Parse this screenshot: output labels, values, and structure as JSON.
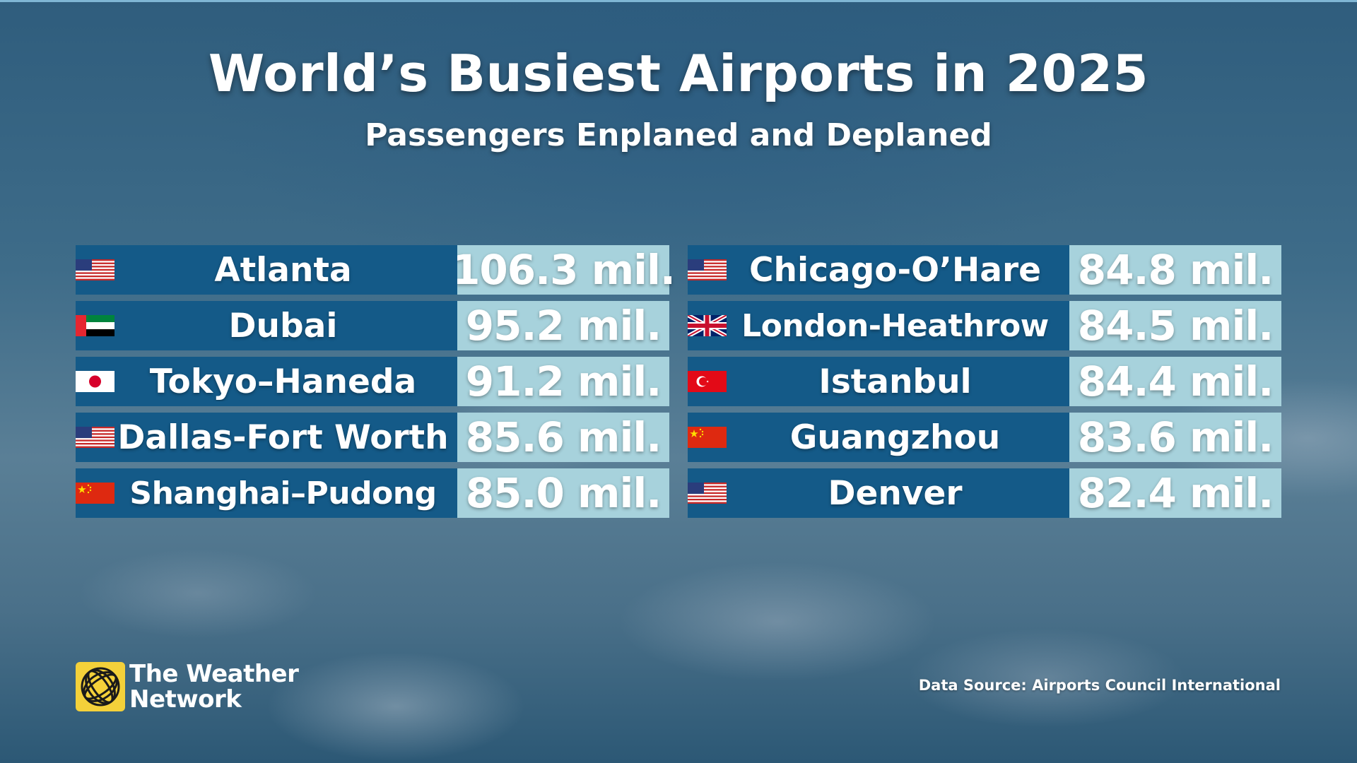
{
  "title": "World’s Busiest Airports in 2025",
  "subtitle": "Passengers Enplaned and Deplaned",
  "airports_left": [
    {
      "flag": "us-flag-icon",
      "city": "Atlanta",
      "value": "106.3 mil."
    },
    {
      "flag": "uae-flag-icon",
      "city": "Dubai",
      "value": "95.2 mil."
    },
    {
      "flag": "japan-flag-icon",
      "city": "Tokyo–Haneda",
      "value": "91.2 mil."
    },
    {
      "flag": "us-flag-icon",
      "city": "Dallas-Fort Worth",
      "value": "85.6 mil."
    },
    {
      "flag": "china-flag-icon",
      "city": "Shanghai–Pudong",
      "value": "85.0 mil."
    }
  ],
  "airports_right": [
    {
      "flag": "us-flag-icon",
      "city": "Chicago-O’Hare",
      "value": "84.8 mil."
    },
    {
      "flag": "uk-flag-icon",
      "city": "London-Heathrow",
      "value": "84.5 mil."
    },
    {
      "flag": "turkey-flag-icon",
      "city": "Istanbul",
      "value": "84.4 mil."
    },
    {
      "flag": "china-flag-icon",
      "city": "Guangzhou",
      "value": "83.6 mil."
    },
    {
      "flag": "us-flag-icon",
      "city": "Denver",
      "value": "82.4 mil."
    }
  ],
  "logo": {
    "line1": "The Weather",
    "line2": "Network",
    "icon": "weather-network-globe-icon"
  },
  "source": "Data Source: Airports Council International",
  "colors": {
    "name_cell": "#145a88",
    "value_cell": "#a7d2dc",
    "logo": "#f4d13a"
  }
}
